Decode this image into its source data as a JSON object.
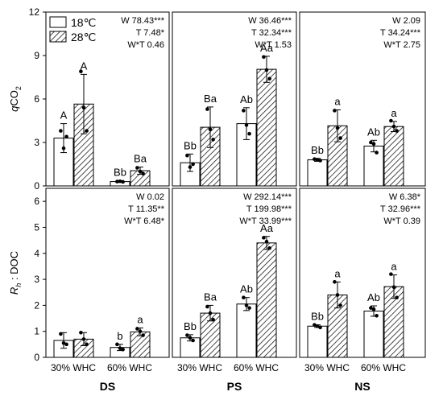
{
  "chart_data": {
    "type": "bar",
    "legend": {
      "entries": [
        {
          "label": "18℃",
          "fill": "open"
        },
        {
          "label": "28℃",
          "fill": "hatched"
        }
      ],
      "placement": "top-left"
    },
    "x_categories": [
      "30% WHC",
      "60% WHC"
    ],
    "columns": [
      "DS",
      "PS",
      "NS"
    ],
    "rows": [
      {
        "ylabel_main": "q",
        "ylabel_sub": "CO",
        "ylabel_subscript": "2",
        "ylim": [
          0,
          12
        ],
        "ticks": [
          "0",
          "3",
          "6",
          "9",
          "12"
        ],
        "tick_values": [
          0,
          3,
          6,
          9,
          12
        ],
        "panels": [
          {
            "stats": [
              "W 78.43***",
              "T 7.48*",
              "W*T 0.46"
            ],
            "bars": [
              {
                "value": 3.3,
                "err": 1.0,
                "label": "A",
                "points": [
                  3.8,
                  2.6,
                  3.4
                ]
              },
              {
                "value": 5.65,
                "err": 2.05,
                "label": "A",
                "points": [
                  7.9,
                  5.4,
                  3.8
                ]
              },
              {
                "value": 0.3,
                "err": 0.05,
                "label": "Bb",
                "points": [
                  0.3,
                  0.32,
                  0.28
                ]
              },
              {
                "value": 1.05,
                "err": 0.25,
                "label": "Ba",
                "points": [
                  1.25,
                  1.0,
                  0.85
                ]
              }
            ]
          },
          {
            "stats": [
              "W 36.46***",
              "T 32.34***",
              "W*T 1.53"
            ],
            "bars": [
              {
                "value": 1.6,
                "err": 0.6,
                "label": "Bb",
                "points": [
                  2.1,
                  1.3,
                  1.5
                ]
              },
              {
                "value": 4.05,
                "err": 1.4,
                "label": "Ba",
                "points": [
                  5.3,
                  3.9,
                  3.2
                ]
              },
              {
                "value": 4.3,
                "err": 1.1,
                "label": "Ab",
                "points": [
                  5.2,
                  4.2,
                  3.6
                ]
              },
              {
                "value": 8.05,
                "err": 0.9,
                "label": "Aa",
                "points": [
                  8.9,
                  8.0,
                  7.4
                ]
              }
            ]
          },
          {
            "stats": [
              "W 2.09",
              "T 34.24***",
              "W*T 2.75"
            ],
            "bars": [
              {
                "value": 1.8,
                "err": 0.1,
                "label": "Bb",
                "points": [
                  1.85,
                  1.8,
                  1.75
                ]
              },
              {
                "value": 4.15,
                "err": 1.1,
                "label": "a",
                "points": [
                  5.2,
                  4.0,
                  3.3
                ]
              },
              {
                "value": 2.75,
                "err": 0.4,
                "label": "Ab",
                "points": [
                  3.0,
                  2.9,
                  2.3
                ]
              },
              {
                "value": 4.1,
                "err": 0.35,
                "label": "a",
                "points": [
                  4.5,
                  4.1,
                  3.8
                ]
              }
            ]
          }
        ]
      },
      {
        "ylabel_main": "R",
        "ylabel_subscript": "h",
        "ylabel_sub": " : DOC",
        "ylim": [
          0,
          6.5
        ],
        "ticks": [
          "0",
          "1",
          "2",
          "3",
          "4",
          "5",
          "6"
        ],
        "tick_values": [
          0,
          1,
          2,
          3,
          4,
          5,
          6
        ],
        "panels": [
          {
            "stats": [
              "W 0.02",
              "T 11.35**",
              "W*T 6.48*"
            ],
            "bars": [
              {
                "value": 0.65,
                "err": 0.3,
                "label": "",
                "points": [
                  0.9,
                  0.55,
                  0.5
                ]
              },
              {
                "value": 0.7,
                "err": 0.25,
                "label": "",
                "points": [
                  0.95,
                  0.7,
                  0.5
                ]
              },
              {
                "value": 0.38,
                "err": 0.12,
                "label": "b",
                "points": [
                  0.5,
                  0.35,
                  0.3
                ]
              },
              {
                "value": 0.98,
                "err": 0.15,
                "label": "a",
                "points": [
                  1.1,
                  1.0,
                  0.85
                ]
              }
            ]
          },
          {
            "stats": [
              "W 292.14***",
              "T 199.98***",
              "W*T 33.99***"
            ],
            "bars": [
              {
                "value": 0.75,
                "err": 0.12,
                "label": "Bb",
                "points": [
                  0.85,
                  0.75,
                  0.65
                ]
              },
              {
                "value": 1.7,
                "err": 0.3,
                "label": "Ba",
                "points": [
                  1.95,
                  1.7,
                  1.45
                ]
              },
              {
                "value": 2.05,
                "err": 0.25,
                "label": "Ab",
                "points": [
                  2.3,
                  2.0,
                  1.9
                ]
              },
              {
                "value": 4.4,
                "err": 0.25,
                "label": "Aa",
                "points": [
                  4.6,
                  4.45,
                  4.2
                ]
              }
            ]
          },
          {
            "stats": [
              "W 6.38*",
              "T 32.96***",
              "W*T 0.39"
            ],
            "bars": [
              {
                "value": 1.2,
                "err": 0.05,
                "label": "Bb",
                "points": [
                  1.25,
                  1.2,
                  1.15
                ]
              },
              {
                "value": 2.4,
                "err": 0.5,
                "label": "a",
                "points": [
                  2.9,
                  2.4,
                  2.0
                ]
              },
              {
                "value": 1.78,
                "err": 0.2,
                "label": "Ab",
                "points": [
                  1.9,
                  1.85,
                  1.6
                ]
              },
              {
                "value": 2.72,
                "err": 0.45,
                "label": "a",
                "points": [
                  3.2,
                  2.7,
                  2.3
                ]
              }
            ]
          }
        ]
      }
    ]
  }
}
